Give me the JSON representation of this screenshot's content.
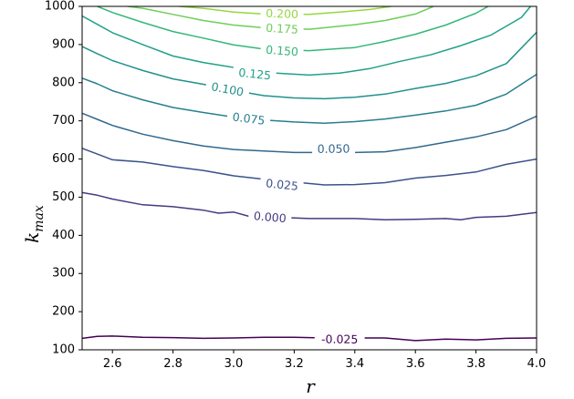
{
  "chart_data": {
    "type": "contour",
    "title": "",
    "xlabel": "r",
    "ylabel_base": "k",
    "ylabel_sub": "max",
    "xlim": [
      2.5,
      4.0
    ],
    "ylim": [
      100,
      1000
    ],
    "x_ticks": [
      "2.6",
      "2.8",
      "3.0",
      "3.2",
      "3.4",
      "3.6",
      "3.8",
      "4.0"
    ],
    "y_ticks": [
      "100",
      "200",
      "300",
      "400",
      "500",
      "600",
      "700",
      "800",
      "900",
      "1000"
    ],
    "grid": false,
    "colormap": "viridis",
    "levels": [
      {
        "label": "-0.025",
        "color": "#440154",
        "label_at": [
          3.35,
          128
        ],
        "points": [
          [
            2.5,
            130
          ],
          [
            2.55,
            135
          ],
          [
            2.6,
            136
          ],
          [
            2.7,
            133
          ],
          [
            2.8,
            132
          ],
          [
            2.9,
            130
          ],
          [
            3.0,
            131
          ],
          [
            3.1,
            133
          ],
          [
            3.2,
            133
          ],
          [
            3.3,
            131
          ],
          [
            3.5,
            131
          ],
          [
            3.6,
            124
          ],
          [
            3.7,
            128
          ],
          [
            3.8,
            126
          ],
          [
            3.9,
            130
          ],
          [
            4.0,
            131
          ]
        ]
      },
      {
        "label": "0.000",
        "color": "#443a83",
        "label_at": [
          3.12,
          448
        ],
        "points": [
          [
            2.5,
            512
          ],
          [
            2.55,
            505
          ],
          [
            2.6,
            495
          ],
          [
            2.7,
            480
          ],
          [
            2.8,
            475
          ],
          [
            2.9,
            466
          ],
          [
            2.95,
            458
          ],
          [
            3.0,
            461
          ],
          [
            3.05,
            450
          ],
          [
            3.25,
            444
          ],
          [
            3.4,
            444
          ],
          [
            3.5,
            441
          ],
          [
            3.6,
            442
          ],
          [
            3.7,
            444
          ],
          [
            3.75,
            441
          ],
          [
            3.8,
            447
          ],
          [
            3.9,
            450
          ],
          [
            4.0,
            460
          ]
        ]
      },
      {
        "label": "0.025",
        "color": "#3b528b",
        "label_at": [
          3.16,
          533
        ],
        "points": [
          [
            2.5,
            628
          ],
          [
            2.55,
            613
          ],
          [
            2.6,
            598
          ],
          [
            2.7,
            592
          ],
          [
            2.8,
            580
          ],
          [
            2.9,
            570
          ],
          [
            3.0,
            556
          ],
          [
            3.1,
            547
          ],
          [
            3.3,
            532
          ],
          [
            3.4,
            533
          ],
          [
            3.5,
            538
          ],
          [
            3.6,
            550
          ],
          [
            3.7,
            557
          ],
          [
            3.8,
            566
          ],
          [
            3.9,
            586
          ],
          [
            4.0,
            600
          ]
        ]
      },
      {
        "label": "0.050",
        "color": "#31688e",
        "label_at": [
          3.33,
          627
        ],
        "points": [
          [
            2.5,
            720
          ],
          [
            2.55,
            704
          ],
          [
            2.6,
            688
          ],
          [
            2.7,
            665
          ],
          [
            2.8,
            648
          ],
          [
            2.9,
            634
          ],
          [
            3.0,
            625
          ],
          [
            3.1,
            621
          ],
          [
            3.2,
            617
          ],
          [
            3.4,
            617
          ],
          [
            3.5,
            619
          ],
          [
            3.6,
            630
          ],
          [
            3.7,
            644
          ],
          [
            3.8,
            658
          ],
          [
            3.9,
            677
          ],
          [
            4.0,
            712
          ]
        ]
      },
      {
        "label": "0.075",
        "color": "#277f8e",
        "label_at": [
          3.05,
          706
        ],
        "points": [
          [
            2.5,
            812
          ],
          [
            2.55,
            797
          ],
          [
            2.6,
            779
          ],
          [
            2.7,
            755
          ],
          [
            2.8,
            735
          ],
          [
            2.9,
            722
          ],
          [
            3.0,
            710
          ],
          [
            3.1,
            702
          ],
          [
            3.2,
            697
          ],
          [
            3.3,
            694
          ],
          [
            3.4,
            698
          ],
          [
            3.5,
            705
          ],
          [
            3.6,
            715
          ],
          [
            3.7,
            726
          ],
          [
            3.8,
            741
          ],
          [
            3.9,
            770
          ],
          [
            4.0,
            822
          ]
        ]
      },
      {
        "label": "0.100",
        "color": "#21918c",
        "label_at": [
          2.98,
          783
        ],
        "points": [
          [
            2.5,
            895
          ],
          [
            2.55,
            876
          ],
          [
            2.6,
            858
          ],
          [
            2.7,
            832
          ],
          [
            2.8,
            810
          ],
          [
            2.9,
            796
          ],
          [
            3.0,
            780
          ],
          [
            3.1,
            766
          ],
          [
            3.2,
            760
          ],
          [
            3.3,
            758
          ],
          [
            3.4,
            762
          ],
          [
            3.5,
            770
          ],
          [
            3.6,
            785
          ],
          [
            3.7,
            798
          ],
          [
            3.8,
            818
          ],
          [
            3.9,
            850
          ],
          [
            4.0,
            932
          ]
        ]
      },
      {
        "label": "0.125",
        "color": "#1fa188",
        "label_at": [
          3.07,
          823
        ],
        "points": [
          [
            2.5,
            975
          ],
          [
            2.55,
            953
          ],
          [
            2.6,
            931
          ],
          [
            2.7,
            900
          ],
          [
            2.8,
            870
          ],
          [
            2.9,
            853
          ],
          [
            3.0,
            840
          ],
          [
            3.1,
            827
          ],
          [
            3.25,
            820
          ],
          [
            3.35,
            825
          ],
          [
            3.45,
            837
          ],
          [
            3.55,
            856
          ],
          [
            3.65,
            873
          ],
          [
            3.75,
            897
          ],
          [
            3.85,
            925
          ],
          [
            3.95,
            971
          ],
          [
            3.98,
            1000
          ]
        ]
      },
      {
        "label": "0.150",
        "color": "#35b779",
        "label_at": [
          3.16,
          884
        ],
        "points": [
          [
            2.55,
            1000
          ],
          [
            2.6,
            984
          ],
          [
            2.7,
            958
          ],
          [
            2.8,
            934
          ],
          [
            2.9,
            917
          ],
          [
            3.0,
            899
          ],
          [
            3.1,
            888
          ],
          [
            3.25,
            884
          ],
          [
            3.4,
            892
          ],
          [
            3.5,
            908
          ],
          [
            3.6,
            927
          ],
          [
            3.7,
            951
          ],
          [
            3.8,
            982
          ],
          [
            3.84,
            1000
          ]
        ]
      },
      {
        "label": "0.175",
        "color": "#6ece58",
        "label_at": [
          3.16,
          942
        ],
        "points": [
          [
            2.65,
            1000
          ],
          [
            2.7,
            995
          ],
          [
            2.8,
            979
          ],
          [
            2.9,
            963
          ],
          [
            3.0,
            951
          ],
          [
            3.1,
            944
          ],
          [
            3.25,
            940
          ],
          [
            3.4,
            952
          ],
          [
            3.5,
            963
          ],
          [
            3.6,
            980
          ],
          [
            3.66,
            1000
          ]
        ]
      },
      {
        "label": "0.200",
        "color": "#95d840",
        "label_at": [
          3.16,
          981
        ],
        "points": [
          [
            2.82,
            1000
          ],
          [
            2.9,
            995
          ],
          [
            3.0,
            985
          ],
          [
            3.1,
            980
          ],
          [
            3.25,
            979
          ],
          [
            3.35,
            985
          ],
          [
            3.45,
            992
          ],
          [
            3.52,
            1000
          ]
        ]
      }
    ]
  }
}
